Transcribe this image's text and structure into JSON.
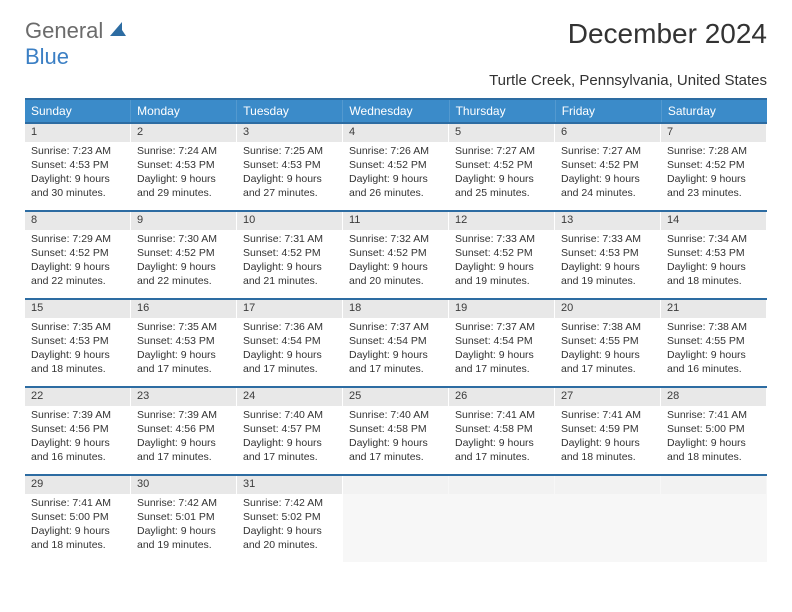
{
  "brand": {
    "part1": "General",
    "part2": "Blue"
  },
  "title": "December 2024",
  "location": "Turtle Creek, Pennsylvania, United States",
  "calendar": {
    "header_bg": "#3b8bc9",
    "header_text_color": "#ffffff",
    "rule_color": "#2d6ca2",
    "daynum_bg": "#e8e8e8",
    "font_body": 10.5,
    "days_of_week": [
      "Sunday",
      "Monday",
      "Tuesday",
      "Wednesday",
      "Thursday",
      "Friday",
      "Saturday"
    ],
    "weeks": [
      [
        {
          "n": "1",
          "sunrise": "Sunrise: 7:23 AM",
          "sunset": "Sunset: 4:53 PM",
          "d1": "Daylight: 9 hours",
          "d2": "and 30 minutes."
        },
        {
          "n": "2",
          "sunrise": "Sunrise: 7:24 AM",
          "sunset": "Sunset: 4:53 PM",
          "d1": "Daylight: 9 hours",
          "d2": "and 29 minutes."
        },
        {
          "n": "3",
          "sunrise": "Sunrise: 7:25 AM",
          "sunset": "Sunset: 4:53 PM",
          "d1": "Daylight: 9 hours",
          "d2": "and 27 minutes."
        },
        {
          "n": "4",
          "sunrise": "Sunrise: 7:26 AM",
          "sunset": "Sunset: 4:52 PM",
          "d1": "Daylight: 9 hours",
          "d2": "and 26 minutes."
        },
        {
          "n": "5",
          "sunrise": "Sunrise: 7:27 AM",
          "sunset": "Sunset: 4:52 PM",
          "d1": "Daylight: 9 hours",
          "d2": "and 25 minutes."
        },
        {
          "n": "6",
          "sunrise": "Sunrise: 7:27 AM",
          "sunset": "Sunset: 4:52 PM",
          "d1": "Daylight: 9 hours",
          "d2": "and 24 minutes."
        },
        {
          "n": "7",
          "sunrise": "Sunrise: 7:28 AM",
          "sunset": "Sunset: 4:52 PM",
          "d1": "Daylight: 9 hours",
          "d2": "and 23 minutes."
        }
      ],
      [
        {
          "n": "8",
          "sunrise": "Sunrise: 7:29 AM",
          "sunset": "Sunset: 4:52 PM",
          "d1": "Daylight: 9 hours",
          "d2": "and 22 minutes."
        },
        {
          "n": "9",
          "sunrise": "Sunrise: 7:30 AM",
          "sunset": "Sunset: 4:52 PM",
          "d1": "Daylight: 9 hours",
          "d2": "and 22 minutes."
        },
        {
          "n": "10",
          "sunrise": "Sunrise: 7:31 AM",
          "sunset": "Sunset: 4:52 PM",
          "d1": "Daylight: 9 hours",
          "d2": "and 21 minutes."
        },
        {
          "n": "11",
          "sunrise": "Sunrise: 7:32 AM",
          "sunset": "Sunset: 4:52 PM",
          "d1": "Daylight: 9 hours",
          "d2": "and 20 minutes."
        },
        {
          "n": "12",
          "sunrise": "Sunrise: 7:33 AM",
          "sunset": "Sunset: 4:52 PM",
          "d1": "Daylight: 9 hours",
          "d2": "and 19 minutes."
        },
        {
          "n": "13",
          "sunrise": "Sunrise: 7:33 AM",
          "sunset": "Sunset: 4:53 PM",
          "d1": "Daylight: 9 hours",
          "d2": "and 19 minutes."
        },
        {
          "n": "14",
          "sunrise": "Sunrise: 7:34 AM",
          "sunset": "Sunset: 4:53 PM",
          "d1": "Daylight: 9 hours",
          "d2": "and 18 minutes."
        }
      ],
      [
        {
          "n": "15",
          "sunrise": "Sunrise: 7:35 AM",
          "sunset": "Sunset: 4:53 PM",
          "d1": "Daylight: 9 hours",
          "d2": "and 18 minutes."
        },
        {
          "n": "16",
          "sunrise": "Sunrise: 7:35 AM",
          "sunset": "Sunset: 4:53 PM",
          "d1": "Daylight: 9 hours",
          "d2": "and 17 minutes."
        },
        {
          "n": "17",
          "sunrise": "Sunrise: 7:36 AM",
          "sunset": "Sunset: 4:54 PM",
          "d1": "Daylight: 9 hours",
          "d2": "and 17 minutes."
        },
        {
          "n": "18",
          "sunrise": "Sunrise: 7:37 AM",
          "sunset": "Sunset: 4:54 PM",
          "d1": "Daylight: 9 hours",
          "d2": "and 17 minutes."
        },
        {
          "n": "19",
          "sunrise": "Sunrise: 7:37 AM",
          "sunset": "Sunset: 4:54 PM",
          "d1": "Daylight: 9 hours",
          "d2": "and 17 minutes."
        },
        {
          "n": "20",
          "sunrise": "Sunrise: 7:38 AM",
          "sunset": "Sunset: 4:55 PM",
          "d1": "Daylight: 9 hours",
          "d2": "and 17 minutes."
        },
        {
          "n": "21",
          "sunrise": "Sunrise: 7:38 AM",
          "sunset": "Sunset: 4:55 PM",
          "d1": "Daylight: 9 hours",
          "d2": "and 16 minutes."
        }
      ],
      [
        {
          "n": "22",
          "sunrise": "Sunrise: 7:39 AM",
          "sunset": "Sunset: 4:56 PM",
          "d1": "Daylight: 9 hours",
          "d2": "and 16 minutes."
        },
        {
          "n": "23",
          "sunrise": "Sunrise: 7:39 AM",
          "sunset": "Sunset: 4:56 PM",
          "d1": "Daylight: 9 hours",
          "d2": "and 17 minutes."
        },
        {
          "n": "24",
          "sunrise": "Sunrise: 7:40 AM",
          "sunset": "Sunset: 4:57 PM",
          "d1": "Daylight: 9 hours",
          "d2": "and 17 minutes."
        },
        {
          "n": "25",
          "sunrise": "Sunrise: 7:40 AM",
          "sunset": "Sunset: 4:58 PM",
          "d1": "Daylight: 9 hours",
          "d2": "and 17 minutes."
        },
        {
          "n": "26",
          "sunrise": "Sunrise: 7:41 AM",
          "sunset": "Sunset: 4:58 PM",
          "d1": "Daylight: 9 hours",
          "d2": "and 17 minutes."
        },
        {
          "n": "27",
          "sunrise": "Sunrise: 7:41 AM",
          "sunset": "Sunset: 4:59 PM",
          "d1": "Daylight: 9 hours",
          "d2": "and 18 minutes."
        },
        {
          "n": "28",
          "sunrise": "Sunrise: 7:41 AM",
          "sunset": "Sunset: 5:00 PM",
          "d1": "Daylight: 9 hours",
          "d2": "and 18 minutes."
        }
      ],
      [
        {
          "n": "29",
          "sunrise": "Sunrise: 7:41 AM",
          "sunset": "Sunset: 5:00 PM",
          "d1": "Daylight: 9 hours",
          "d2": "and 18 minutes."
        },
        {
          "n": "30",
          "sunrise": "Sunrise: 7:42 AM",
          "sunset": "Sunset: 5:01 PM",
          "d1": "Daylight: 9 hours",
          "d2": "and 19 minutes."
        },
        {
          "n": "31",
          "sunrise": "Sunrise: 7:42 AM",
          "sunset": "Sunset: 5:02 PM",
          "d1": "Daylight: 9 hours",
          "d2": "and 20 minutes."
        },
        {
          "empty": true
        },
        {
          "empty": true
        },
        {
          "empty": true
        },
        {
          "empty": true
        }
      ]
    ]
  }
}
